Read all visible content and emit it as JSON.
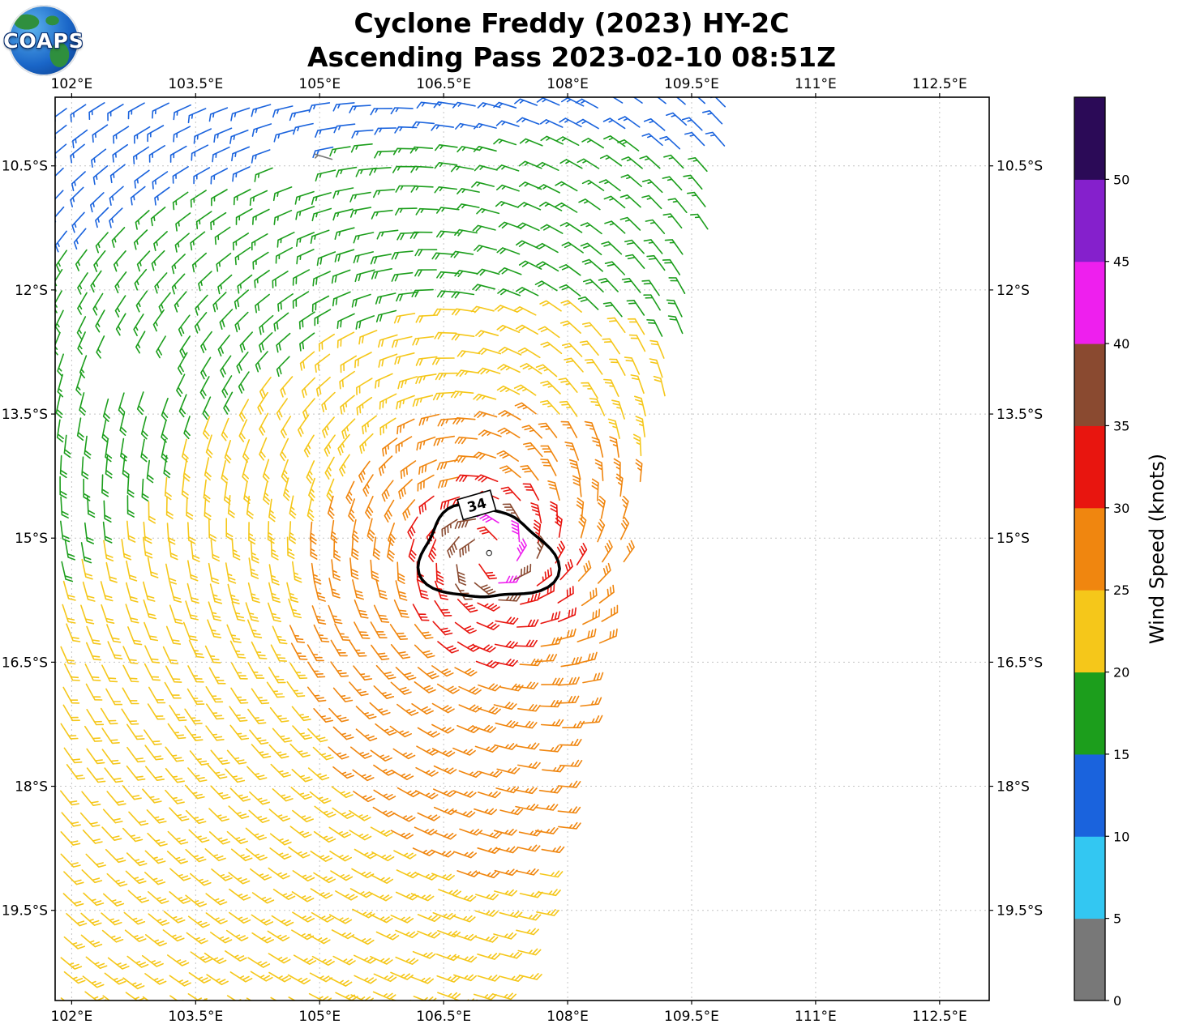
{
  "header": {
    "title_line1": "Cyclone Freddy (2023) HY-2C",
    "title_line2": "Ascending Pass 2023-02-10 08:51Z",
    "logo_text": "COAPS"
  },
  "style": {
    "grid_color": "#c4c4c4",
    "axis_color": "#000000",
    "contour_color": "#000000"
  },
  "chart_data": {
    "type": "wind_barb_map",
    "title": "Cyclone Freddy (2023) HY-2C",
    "subtitle": "Ascending Pass 2023-02-10 08:51Z",
    "x_axis": {
      "ticks": [
        102,
        103.5,
        105,
        106.5,
        108,
        109.5,
        111,
        112.5
      ],
      "tick_labels": [
        "102°E",
        "103.5°E",
        "105°E",
        "106.5°E",
        "108°E",
        "109.5°E",
        "111°E",
        "112.5°E"
      ],
      "range": [
        101.8,
        113.1
      ]
    },
    "y_axis": {
      "ticks": [
        10.5,
        12,
        13.5,
        15,
        16.5,
        18,
        19.5
      ],
      "tick_labels": [
        "10.5°S",
        "12°S",
        "13.5°S",
        "15°S",
        "16.5°S",
        "18°S",
        "19.5°S"
      ],
      "range": [
        9.67,
        20.59
      ]
    },
    "colorbar": {
      "label": "Wind Speed (knots)",
      "tick_labels": [
        "0",
        "5",
        "10",
        "15",
        "20",
        "25",
        "30",
        "35",
        "40",
        "45",
        "50"
      ],
      "levels": [
        0,
        5,
        10,
        15,
        20,
        25,
        30,
        35,
        40,
        45,
        50,
        55
      ],
      "colors": [
        "#787878",
        "#33c7f2",
        "#1a63dd",
        "#1c9e1c",
        "#f5c71a",
        "#f0860f",
        "#e8150f",
        "#8a4a30",
        "#ee1fee",
        "#8520cc",
        "#2b0a57"
      ]
    },
    "wind_field": {
      "center_lon": 107.05,
      "center_lat": 15.18,
      "vmax_kt": 43,
      "rmax_deg": 0.3,
      "inner_exp": 0.7,
      "decay_exp": 0.42,
      "background_base_kt": 1.5,
      "background_lat_slope": 0.95,
      "background_ref_lat": 9.7,
      "background_dir_to": [
        -0.95,
        0.31
      ],
      "background_ramp_deg": 1.5,
      "inflow_frac": 0.25,
      "grid_spacing_deg": 0.25,
      "grid_lon_start": 101.9,
      "grid_lat_start": 9.78,
      "swath_edge": {
        "lon0": 110.1,
        "lat0": 9.7,
        "slope": 0.25
      },
      "eye_radius_deg": 0.16,
      "gaps": [
        {
          "lon": 102.75,
          "lat": 12.85,
          "rlon": 0.52,
          "rlat": 0.33
        },
        {
          "lon": 104.85,
          "lat": 10.38,
          "rlon": 0.32,
          "rlat": 0.26
        }
      ],
      "calm_points": [
        {
          "lon": 105.15,
          "lat": 10.42,
          "speed_kt": 3
        }
      ]
    },
    "contour": {
      "level": 34,
      "label": "34",
      "center_lon": 107.0,
      "center_lat": 15.2,
      "base_radius_deg": 0.63,
      "label_lon": 106.9,
      "label_lat": 14.6,
      "label_rotation_deg": -16
    }
  }
}
